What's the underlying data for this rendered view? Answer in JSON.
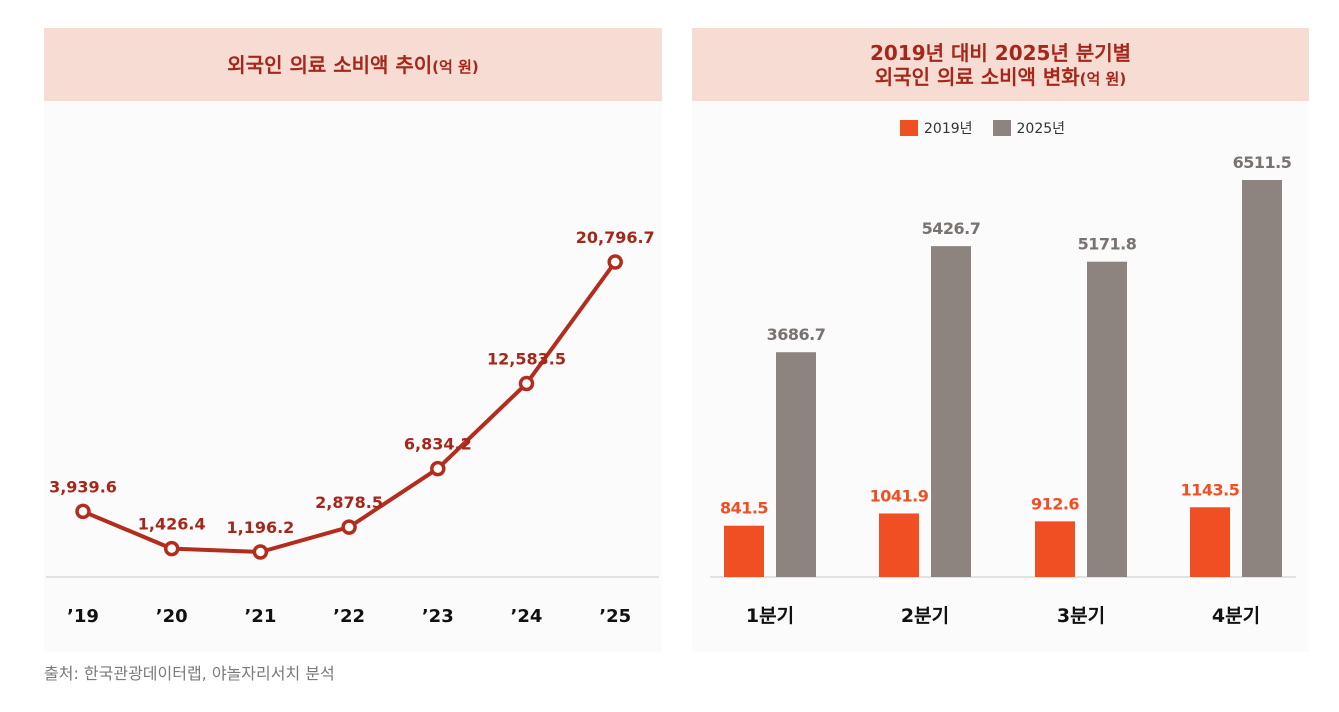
{
  "colors": {
    "title_bg": "#f7dcd3",
    "title_text": "#a5271b",
    "line": "#b32d1e",
    "label": "#a5271b",
    "bar_2019": "#f04e23",
    "bar_2025": "#8d8480",
    "value_2025": "#7a7370"
  },
  "left_panel": {
    "title": "외국인 의료 소비액 추이",
    "unit": "(억 원)"
  },
  "right_panel": {
    "title_line1": "2019년 대비 2025년 분기별",
    "title_line2": "외국인 의료 소비액 변화",
    "unit": "(억 원)"
  },
  "legend": {
    "items": [
      {
        "label": "2019년",
        "color": "#f04e23"
      },
      {
        "label": "2025년",
        "color": "#8d8480"
      }
    ]
  },
  "source": "출처: 한국관광데이터랩, 야놀자리서치 분석",
  "chart_data": [
    {
      "type": "line",
      "x": [
        "’19",
        "’20",
        "’21",
        "’22",
        "’23",
        "’24",
        "’25"
      ],
      "values": [
        3939.6,
        1426.4,
        1196.2,
        2878.5,
        6834.2,
        12583.5,
        20796.7
      ],
      "value_labels": [
        "3,939.6",
        "1,426.4",
        "1,196.2",
        "2,878.5",
        "6,834.2",
        "12,583.5",
        "20,796.7"
      ],
      "title": "외국인 의료 소비액 추이(억 원)",
      "grid": false
    },
    {
      "type": "bar",
      "categories": [
        "1분기",
        "2분기",
        "3분기",
        "4분기"
      ],
      "series": [
        {
          "name": "2019년",
          "values": [
            841.5,
            1041.9,
            912.6,
            1143.5
          ],
          "value_labels": [
            "841.5",
            "1041.9",
            "912.6",
            "1143.5"
          ]
        },
        {
          "name": "2025년",
          "values": [
            3686.7,
            5426.7,
            5171.8,
            6511.5
          ],
          "value_labels": [
            "3686.7",
            "5426.7",
            "5171.8",
            "6511.5"
          ]
        }
      ],
      "title": "2019년 대비 2025년 분기별 외국인 의료 소비액 변화(억 원)",
      "legend": "top-center",
      "grid": false
    }
  ]
}
